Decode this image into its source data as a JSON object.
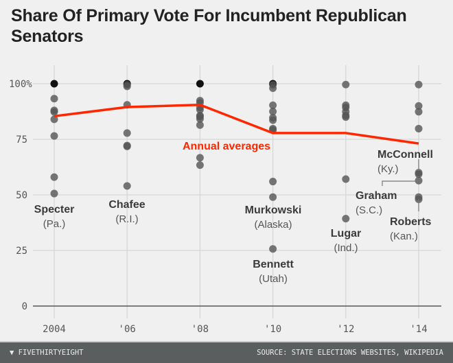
{
  "title": "Share Of Primary Vote For Incumbent Republican Senators",
  "footer": {
    "brand": "FIVETHIRTYEIGHT",
    "source": "SOURCE: STATE ELECTIONS WEBSITES, WIKIPEDIA"
  },
  "chart_data": {
    "type": "scatter",
    "title": "Share Of Primary Vote For Incumbent Republican Senators",
    "xlabel": "",
    "ylabel": "",
    "categories": [
      "2004",
      "'06",
      "'08",
      "'10",
      "'12",
      "'14"
    ],
    "ylim": [
      0,
      100
    ],
    "yticks": [
      0,
      25,
      50,
      75,
      100
    ],
    "ytick_labels": [
      "0",
      "25",
      "50",
      "75",
      "100%"
    ],
    "grid": true,
    "points": [
      [
        100,
        93.3,
        88,
        87.3,
        84,
        76.5,
        58,
        50.6
      ],
      [
        100,
        99.5,
        98.8,
        90.5,
        77.8,
        72.2,
        71.8,
        54
      ],
      [
        100,
        92.4,
        91.4,
        89.3,
        88.3,
        85.7,
        85.2,
        84.2,
        81.4,
        66.7,
        63.4
      ],
      [
        100,
        99.5,
        98,
        90.3,
        87.5,
        84.7,
        83.6,
        79.8,
        79.2,
        56,
        49,
        25.7
      ],
      [
        99.6,
        90.3,
        89.3,
        87.4,
        85.7,
        85,
        57.1,
        39.3
      ],
      [
        99.6,
        90,
        87.4,
        79.8,
        60,
        59.3,
        56.4,
        49,
        48
      ]
    ],
    "averages": {
      "name": "Annual averages",
      "values": [
        85.4,
        89.5,
        90.5,
        77.8,
        77.8,
        73.1
      ],
      "color": "#ff2700"
    },
    "point_color": "#555555",
    "annotations": [
      {
        "name": "Specter",
        "state": "(Pa.)"
      },
      {
        "name": "Chafee",
        "state": "(R.I.)"
      },
      {
        "name": "Murkowski",
        "state": "(Alaska)"
      },
      {
        "name": "Bennett",
        "state": "(Utah)"
      },
      {
        "name": "Lugar",
        "state": "(Ind.)"
      },
      {
        "name": "Graham",
        "state": "(S.C.)"
      },
      {
        "name": "Roberts",
        "state": "(Kan.)"
      },
      {
        "name": "McConnell",
        "state": "(Ky.)"
      }
    ]
  }
}
